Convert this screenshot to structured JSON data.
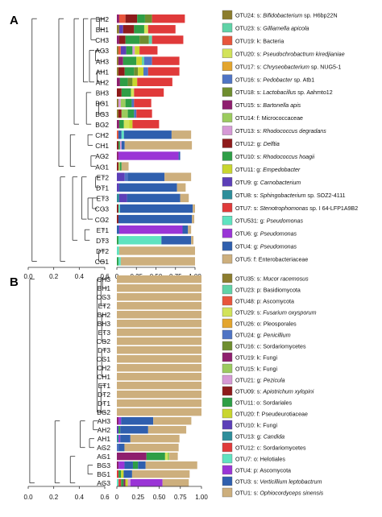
{
  "chart_data": [
    {
      "panel": "A",
      "type": "bar",
      "orientation": "horizontal",
      "stacked": true,
      "x_ticks": [
        "0",
        "0.25",
        "0.50",
        "0.75",
        "1.00"
      ],
      "tree_ticks": [
        "0.0",
        "0.2",
        "0.4",
        "0.6"
      ],
      "samples": [
        "BH2",
        "BH1",
        "CH3",
        "AG3",
        "AH3",
        "AH1",
        "AH2",
        "BH3",
        "BG1",
        "BG3",
        "BG2",
        "CH2",
        "CH1",
        "AG2",
        "AG1",
        "ET2",
        "DT1",
        "ET3",
        "CG3",
        "CG2",
        "ET1",
        "DT3",
        "DT2",
        "CG1"
      ],
      "legend": [
        {
          "prefix": "OTU24: s: ",
          "taxon": "Bifidobacterium",
          "suffix": " sp. H6bp22N",
          "color": "#8C7D2E"
        },
        {
          "prefix": "OTU23: s: ",
          "taxon": "Gilliamella apicola",
          "suffix": "",
          "color": "#5FD3A7"
        },
        {
          "prefix": "OTU19: k: Bacteria",
          "taxon": "",
          "suffix": "",
          "color": "#E8553C"
        },
        {
          "prefix": "OTU20: s: ",
          "taxon": "Pseudochrobactrum kiredjianiae",
          "suffix": "",
          "color": "#D2E35A"
        },
        {
          "prefix": "OTU17: s: ",
          "taxon": "Chryseobacterium",
          "suffix": " sp. NUG5-1",
          "color": "#E3A52E"
        },
        {
          "prefix": "OTU16: s: ",
          "taxon": "Pedobacter",
          "suffix": " sp. Atb1",
          "color": "#4F74C4"
        },
        {
          "prefix": "OTU18: s: ",
          "taxon": "Lactobacillus",
          "suffix": " sp. Aahmto12",
          "color": "#6F8E2F"
        },
        {
          "prefix": "OTU15: s: ",
          "taxon": "Bartonella apis",
          "suffix": "",
          "color": "#8E1F6E"
        },
        {
          "prefix": "OTU14: f: Micrococcaceae",
          "taxon": "",
          "suffix": "",
          "color": "#9BCB5E"
        },
        {
          "prefix": "OTU13: s: ",
          "taxon": "Rhodococcus degradans",
          "suffix": "",
          "color": "#D699D6"
        },
        {
          "prefix": "OTU12: g: ",
          "taxon": "Delftia",
          "suffix": "",
          "color": "#8E1B1B"
        },
        {
          "prefix": "OTU10: s: ",
          "taxon": "Rhodococcus hoagii",
          "suffix": "",
          "color": "#2E9E46"
        },
        {
          "prefix": "OTU11: g: ",
          "taxon": "Empedobacter",
          "suffix": "",
          "color": "#C9D62E"
        },
        {
          "prefix": "OTU9: g: ",
          "taxon": "Carnobacterium",
          "suffix": "",
          "color": "#5C3FB8"
        },
        {
          "prefix": "OTU8: s: ",
          "taxon": "Sphingobacterium",
          "suffix": " sp. SOZ2-4111",
          "color": "#2E8E9A"
        },
        {
          "prefix": "OTU7: s: ",
          "taxon": "Stenotrophomonas",
          "suffix": " sp. I 64-LFP1A9B2",
          "color": "#E03A3A"
        },
        {
          "prefix": "OTU531: g: ",
          "taxon": "Pseudomonas",
          "suffix": "",
          "color": "#5FE3C0"
        },
        {
          "prefix": "OTU6: g: ",
          "taxon": "Pseudomonas",
          "suffix": "",
          "color": "#9A35D6"
        },
        {
          "prefix": "OTU4: g: ",
          "taxon": "Pseudomonas",
          "suffix": "",
          "color": "#2F5FAE"
        },
        {
          "prefix": "OTU5: f: Enterobacteriaceae",
          "taxon": "",
          "suffix": "",
          "color": "#CDAF7D"
        }
      ],
      "bars": [
        [
          [
            "#8E1F6E",
            0.03
          ],
          [
            "#E8553C",
            0.08
          ],
          [
            "#8E1B1B",
            0.15
          ],
          [
            "#2E9E46",
            0.1
          ],
          [
            "#6F8E2F",
            0.09
          ],
          [
            "#E03A3A",
            0.42
          ]
        ],
        [
          [
            "#8C7D2E",
            0.03
          ],
          [
            "#5C3FB8",
            0.05
          ],
          [
            "#8E1B1B",
            0.14
          ],
          [
            "#2E9E46",
            0.13
          ],
          [
            "#D2E35A",
            0.05
          ],
          [
            "#E03A3A",
            0.35
          ]
        ],
        [
          [
            "#8E1F6E",
            0.03
          ],
          [
            "#8E1B1B",
            0.08
          ],
          [
            "#2E9E46",
            0.18
          ],
          [
            "#6F8E2F",
            0.12
          ],
          [
            "#5FD3A7",
            0.04
          ],
          [
            "#E03A3A",
            0.4
          ]
        ],
        [
          [
            "#8C7D2E",
            0.02
          ],
          [
            "#E8553C",
            0.03
          ],
          [
            "#5C3FB8",
            0.07
          ],
          [
            "#2E9E46",
            0.08
          ],
          [
            "#D699D6",
            0.03
          ],
          [
            "#C9D62E",
            0.06
          ],
          [
            "#E03A3A",
            0.23
          ]
        ],
        [
          [
            "#8C7D2E",
            0.02
          ],
          [
            "#8E1F6E",
            0.06
          ],
          [
            "#2E9E46",
            0.17
          ],
          [
            "#C9D62E",
            0.07
          ],
          [
            "#5FD3A7",
            0.03
          ],
          [
            "#4F74C4",
            0.1
          ],
          [
            "#E03A3A",
            0.35
          ]
        ],
        [
          [
            "#8C7D2E",
            0.02
          ],
          [
            "#8E1B1B",
            0.08
          ],
          [
            "#2E9E46",
            0.12
          ],
          [
            "#6F8E2F",
            0.05
          ],
          [
            "#C9D62E",
            0.07
          ],
          [
            "#4F74C4",
            0.06
          ],
          [
            "#E03A3A",
            0.4
          ]
        ],
        [
          [
            "#8E1F6E",
            0.04
          ],
          [
            "#2E9E46",
            0.1
          ],
          [
            "#6F8E2F",
            0.06
          ],
          [
            "#C9D62E",
            0.06
          ],
          [
            "#E03A3A",
            0.45
          ]
        ],
        [
          [
            "#8E1B1B",
            0.06
          ],
          [
            "#2E9E46",
            0.12
          ],
          [
            "#D2E35A",
            0.04
          ],
          [
            "#E03A3A",
            0.38
          ]
        ],
        [
          [
            "#8C7D2E",
            0.02
          ],
          [
            "#D699D6",
            0.03
          ],
          [
            "#9BCB5E",
            0.06
          ],
          [
            "#2E9E46",
            0.08
          ],
          [
            "#4F74C4",
            0.03
          ],
          [
            "#E03A3A",
            0.22
          ]
        ],
        [
          [
            "#8C7D2E",
            0.02
          ],
          [
            "#8E1B1B",
            0.04
          ],
          [
            "#9BCB5E",
            0.08
          ],
          [
            "#2E9E46",
            0.08
          ],
          [
            "#4F74C4",
            0.03
          ],
          [
            "#E03A3A",
            0.2
          ]
        ],
        [
          [
            "#8E1F6E",
            0.03
          ],
          [
            "#2E9E46",
            0.06
          ],
          [
            "#D2E35A",
            0.07
          ],
          [
            "#C9D62E",
            0.04
          ],
          [
            "#E03A3A",
            0.34
          ]
        ],
        [
          [
            "#E8553C",
            0.02
          ],
          [
            "#2F5FAE",
            0.04
          ],
          [
            "#5FE3C0",
            0.03
          ],
          [
            "#2F5FAE",
            0.61
          ],
          [
            "#CDAF7D",
            0.25
          ]
        ],
        [
          [
            "#8E1B1B",
            0.02
          ],
          [
            "#2E9E46",
            0.02
          ],
          [
            "#D699D6",
            0.02
          ],
          [
            "#2F5FAE",
            0.04
          ],
          [
            "#CDAF7D",
            0.86
          ]
        ],
        [
          [
            "#8E1F6E",
            0.02
          ],
          [
            "#9A35D6",
            0.77
          ],
          [
            "#2F5FAE",
            0.02
          ]
        ],
        [
          [
            "#8E1B1B",
            0.02
          ],
          [
            "#9BCB5E",
            0.02
          ],
          [
            "#2E9E46",
            0.02
          ],
          [
            "#CDAF7D",
            0.09
          ]
        ],
        [
          [
            "#5C3FB8",
            0.1
          ],
          [
            "#4F74C4",
            0.04
          ],
          [
            "#2F5FAE",
            0.47
          ],
          [
            "#CDAF7D",
            0.34
          ]
        ],
        [
          [
            "#5C3FB8",
            0.03
          ],
          [
            "#2F5FAE",
            0.74
          ],
          [
            "#CDAF7D",
            0.11
          ]
        ],
        [
          [
            "#2E8E9A",
            0.03
          ],
          [
            "#5C3FB8",
            0.1
          ],
          [
            "#2F5FAE",
            0.68
          ],
          [
            "#CDAF7D",
            0.11
          ]
        ],
        [
          [
            "#8E1B1B",
            0.02
          ],
          [
            "#5FE3C0",
            0.02
          ],
          [
            "#2F5FAE",
            0.93
          ],
          [
            "#CDAF7D",
            0.03
          ]
        ],
        [
          [
            "#8E1B1B",
            0.02
          ],
          [
            "#2F5FAE",
            0.94
          ],
          [
            "#CDAF7D",
            0.03
          ]
        ],
        [
          [
            "#2F5FAE",
            0.03
          ],
          [
            "#9A35D6",
            0.81
          ],
          [
            "#2F5FAE",
            0.07
          ],
          [
            "#CDAF7D",
            0.04
          ]
        ],
        [
          [
            "#2E9E46",
            0.02
          ],
          [
            "#5FE3C0",
            0.55
          ],
          [
            "#2F5FAE",
            0.38
          ],
          [
            "#CDAF7D",
            0.03
          ]
        ],
        [
          [
            "#5FE3C0",
            0.03
          ],
          [
            "#CDAF7D",
            0.97
          ]
        ],
        [
          [
            "#2E9E46",
            0.02
          ],
          [
            "#5FE3C0",
            0.03
          ],
          [
            "#CDAF7D",
            0.95
          ]
        ]
      ]
    },
    {
      "panel": "B",
      "type": "bar",
      "orientation": "horizontal",
      "stacked": true,
      "x_ticks": [
        "0",
        "0.25",
        "0.50",
        "0.75",
        "1.00"
      ],
      "tree_ticks": [
        "0.0",
        "0.2",
        "0.4",
        "0.6"
      ],
      "samples": [
        "CH3",
        "BH1",
        "CG3",
        "ET2",
        "BH2",
        "BH3",
        "ET3",
        "CG2",
        "DT3",
        "CG1",
        "CH2",
        "CH1",
        "ET1",
        "DT2",
        "DT1",
        "BG2",
        "AH3",
        "AH2",
        "AH1",
        "AG2",
        "AG1",
        "BG3",
        "BG1",
        "AG3"
      ],
      "legend": [
        {
          "prefix": "OTU35: s: ",
          "taxon": "Mucor racemosus",
          "suffix": "",
          "color": "#8C7D2E"
        },
        {
          "prefix": "OTU23: p: Basidiomycota",
          "taxon": "",
          "suffix": "",
          "color": "#5FD3A7"
        },
        {
          "prefix": "OTU48: p: Ascomycota",
          "taxon": "",
          "suffix": "",
          "color": "#E8553C"
        },
        {
          "prefix": "OTU29: s: ",
          "taxon": "Fusarium oxysporum",
          "suffix": "",
          "color": "#D2E35A"
        },
        {
          "prefix": "OTU26: o: Pleosporales",
          "taxon": "",
          "suffix": "",
          "color": "#E3A52E"
        },
        {
          "prefix": "OTU24: g: ",
          "taxon": "Penicillium",
          "suffix": "",
          "color": "#4F74C4"
        },
        {
          "prefix": "OTU16: c: Sordariomycetes",
          "taxon": "",
          "suffix": "",
          "color": "#6F8E2F"
        },
        {
          "prefix": "OTU19: k: Fungi",
          "taxon": "",
          "suffix": "",
          "color": "#8E1F6E"
        },
        {
          "prefix": "OTU15: k: Fungi",
          "taxon": "",
          "suffix": "",
          "color": "#9BCB5E"
        },
        {
          "prefix": "OTU21: g: ",
          "taxon": "Pezicula",
          "suffix": "",
          "color": "#D699D6"
        },
        {
          "prefix": "OTU09: s: ",
          "taxon": "Apiotrichum xylopini",
          "suffix": "",
          "color": "#8E1B1B"
        },
        {
          "prefix": "OTU11: o: Sordariales",
          "taxon": "",
          "suffix": "",
          "color": "#2E9E46"
        },
        {
          "prefix": "OTU20: f: Pseudeurotiaceae",
          "taxon": "",
          "suffix": "",
          "color": "#C9D62E"
        },
        {
          "prefix": "OTU10: k: Fungi",
          "taxon": "",
          "suffix": "",
          "color": "#5C3FB8"
        },
        {
          "prefix": "OTU13: g: ",
          "taxon": "Candida",
          "suffix": "",
          "color": "#2E8E9A"
        },
        {
          "prefix": "OTU12: c: Sordariomycetes",
          "taxon": "",
          "suffix": "",
          "color": "#E03A3A"
        },
        {
          "prefix": "OTU7: o: Helotiales",
          "taxon": "",
          "suffix": "",
          "color": "#5FE3C0"
        },
        {
          "prefix": "OTU4: p: Ascomycota",
          "taxon": "",
          "suffix": "",
          "color": "#9A35D6"
        },
        {
          "prefix": "OTU3: s: ",
          "taxon": "Verticillium leptobactrum",
          "suffix": "",
          "color": "#2F5FAE"
        },
        {
          "prefix": "OTU1: s: ",
          "taxon": "Ophiocordyceps sinensis",
          "suffix": "",
          "color": "#CDAF7D"
        }
      ],
      "bars": [
        [
          [
            "#CDAF7D",
            1.0
          ]
        ],
        [
          [
            "#CDAF7D",
            1.0
          ]
        ],
        [
          [
            "#CDAF7D",
            1.0
          ]
        ],
        [
          [
            "#CDAF7D",
            1.0
          ]
        ],
        [
          [
            "#CDAF7D",
            1.0
          ]
        ],
        [
          [
            "#CDAF7D",
            1.0
          ]
        ],
        [
          [
            "#CDAF7D",
            1.0
          ]
        ],
        [
          [
            "#CDAF7D",
            1.0
          ]
        ],
        [
          [
            "#CDAF7D",
            1.0
          ]
        ],
        [
          [
            "#CDAF7D",
            1.0
          ]
        ],
        [
          [
            "#CDAF7D",
            1.0
          ]
        ],
        [
          [
            "#CDAF7D",
            1.0
          ]
        ],
        [
          [
            "#CDAF7D",
            1.0
          ]
        ],
        [
          [
            "#CDAF7D",
            1.0
          ]
        ],
        [
          [
            "#CDAF7D",
            1.0
          ]
        ],
        [
          [
            "#CDAF7D",
            1.0
          ]
        ],
        [
          [
            "#8E1F6E",
            0.02
          ],
          [
            "#9A35D6",
            0.03
          ],
          [
            "#2F5FAE",
            0.38
          ],
          [
            "#CDAF7D",
            0.45
          ]
        ],
        [
          [
            "#5C3FB8",
            0.02
          ],
          [
            "#2E9E46",
            0.02
          ],
          [
            "#2F5FAE",
            0.33
          ],
          [
            "#CDAF7D",
            0.45
          ]
        ],
        [
          [
            "#2E8E9A",
            0.02
          ],
          [
            "#9A35D6",
            0.02
          ],
          [
            "#2F5FAE",
            0.12
          ],
          [
            "#CDAF7D",
            0.58
          ]
        ],
        [
          [
            "#4F74C4",
            0.02
          ],
          [
            "#2F5FAE",
            0.07
          ],
          [
            "#CDAF7D",
            0.64
          ]
        ],
        [
          [
            "#8E1F6E",
            0.35
          ],
          [
            "#2E9E46",
            0.22
          ],
          [
            "#D2E35A",
            0.03
          ],
          [
            "#9BCB5E",
            0.02
          ],
          [
            "#CDAF7D",
            0.1
          ]
        ],
        [
          [
            "#8E1F6E",
            0.02
          ],
          [
            "#9A35D6",
            0.07
          ],
          [
            "#2F5FAE",
            0.1
          ],
          [
            "#2E9E46",
            0.06
          ],
          [
            "#2F5FAE",
            0.09
          ],
          [
            "#CDAF7D",
            0.61
          ]
        ],
        [
          [
            "#E03A3A",
            0.02
          ],
          [
            "#2E9E46",
            0.03
          ],
          [
            "#C9D62E",
            0.03
          ],
          [
            "#2F5FAE",
            0.1
          ],
          [
            "#CDAF7D",
            0.68
          ]
        ],
        [
          [
            "#5FE3C0",
            0.02
          ],
          [
            "#E03A3A",
            0.03
          ],
          [
            "#2E9E46",
            0.03
          ],
          [
            "#8E1F6E",
            0.02
          ],
          [
            "#C9D62E",
            0.03
          ],
          [
            "#D699D6",
            0.03
          ],
          [
            "#9A35D6",
            0.38
          ],
          [
            "#CDAF7D",
            0.31
          ]
        ]
      ]
    }
  ]
}
